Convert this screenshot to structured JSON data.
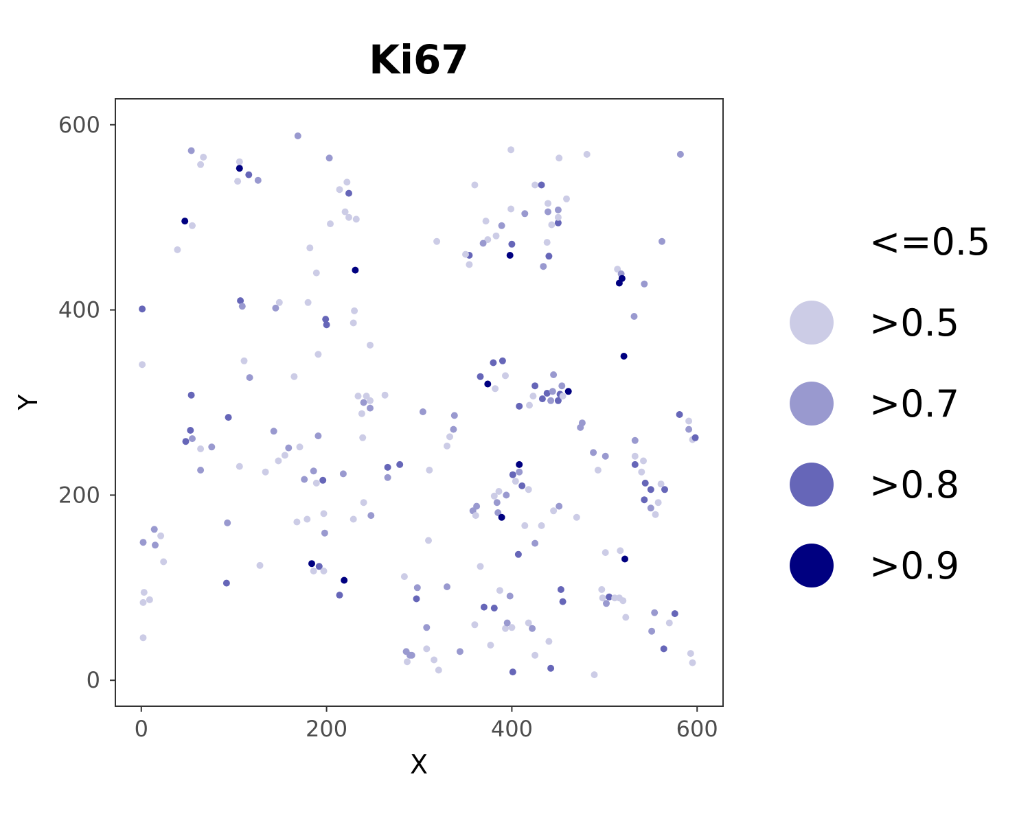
{
  "chart_data": {
    "type": "scatter",
    "title": "Ki67",
    "xlabel": "X",
    "ylabel": "Y",
    "xlim": [
      -28,
      628
    ],
    "ylim": [
      -28,
      628
    ],
    "x_ticks": [
      0,
      200,
      400,
      600
    ],
    "y_ticks": [
      0,
      200,
      400,
      600
    ],
    "x_tick_labels": [
      "0",
      "200",
      "400",
      "600"
    ],
    "y_tick_labels": [
      "0",
      "200",
      "400",
      "600"
    ],
    "grid": false,
    "legend_position": "right",
    "legend": [
      {
        "label": "<=0.5",
        "level": 0,
        "color": "#ffffff",
        "show_key": false
      },
      {
        "label": ">0.5",
        "level": 1,
        "color": "#cccce6",
        "show_key": true
      },
      {
        "label": ">0.7",
        "level": 2,
        "color": "#9999cf",
        "show_key": true
      },
      {
        "label": ">0.8",
        "level": 3,
        "color": "#6666b8",
        "show_key": true
      },
      {
        "label": ">0.9",
        "level": 4,
        "color": "#000080",
        "show_key": true
      }
    ],
    "points": [
      [
        54,
        572,
        2
      ],
      [
        64,
        557,
        1
      ],
      [
        67,
        565,
        1
      ],
      [
        106,
        560,
        1
      ],
      [
        106,
        553,
        4
      ],
      [
        116,
        546,
        3
      ],
      [
        126,
        540,
        2
      ],
      [
        104,
        539,
        1
      ],
      [
        169,
        588,
        2
      ],
      [
        203,
        564,
        2
      ],
      [
        214,
        530,
        1
      ],
      [
        222,
        538,
        1
      ],
      [
        224,
        526,
        3
      ],
      [
        220,
        506,
        1
      ],
      [
        224,
        500,
        1
      ],
      [
        232,
        498,
        1
      ],
      [
        204,
        493,
        1
      ],
      [
        47,
        496,
        4
      ],
      [
        55,
        491,
        1
      ],
      [
        39,
        465,
        1
      ],
      [
        182,
        467,
        1
      ],
      [
        189,
        440,
        1
      ],
      [
        231,
        443,
        4
      ],
      [
        360,
        535,
        1
      ],
      [
        372,
        496,
        1
      ],
      [
        389,
        491,
        2
      ],
      [
        383,
        480,
        1
      ],
      [
        374,
        476,
        1
      ],
      [
        369,
        472,
        2
      ],
      [
        399,
        509,
        1
      ],
      [
        399,
        573,
        1
      ],
      [
        414,
        504,
        2
      ],
      [
        400,
        471,
        3
      ],
      [
        398,
        459,
        4
      ],
      [
        354,
        459,
        3
      ],
      [
        350,
        460,
        1
      ],
      [
        354,
        449,
        1
      ],
      [
        319,
        474,
        1
      ],
      [
        425,
        535,
        1
      ],
      [
        432,
        535,
        3
      ],
      [
        439,
        515,
        1
      ],
      [
        439,
        506,
        2
      ],
      [
        450,
        508,
        2
      ],
      [
        459,
        520,
        1
      ],
      [
        443,
        492,
        1
      ],
      [
        450,
        494,
        3
      ],
      [
        450,
        500,
        1
      ],
      [
        440,
        458,
        3
      ],
      [
        438,
        473,
        1
      ],
      [
        434,
        447,
        2
      ],
      [
        451,
        564,
        1
      ],
      [
        481,
        568,
        1
      ],
      [
        562,
        474,
        2
      ],
      [
        582,
        568,
        2
      ],
      [
        514,
        444,
        1
      ],
      [
        518,
        439,
        2
      ],
      [
        519,
        434,
        4
      ],
      [
        516,
        429,
        4
      ],
      [
        543,
        428,
        2
      ],
      [
        532,
        393,
        2
      ],
      [
        521,
        350,
        4
      ],
      [
        1,
        401,
        3
      ],
      [
        1,
        341,
        1
      ],
      [
        107,
        410,
        3
      ],
      [
        109,
        404,
        2
      ],
      [
        111,
        345,
        1
      ],
      [
        117,
        327,
        2
      ],
      [
        145,
        402,
        2
      ],
      [
        149,
        408,
        1
      ],
      [
        180,
        408,
        1
      ],
      [
        165,
        328,
        1
      ],
      [
        191,
        352,
        1
      ],
      [
        199,
        390,
        3
      ],
      [
        200,
        384,
        3
      ],
      [
        229,
        386,
        1
      ],
      [
        230,
        399,
        1
      ],
      [
        247,
        362,
        1
      ],
      [
        234,
        307,
        1
      ],
      [
        243,
        307,
        1
      ],
      [
        240,
        300,
        2
      ],
      [
        247,
        294,
        2
      ],
      [
        238,
        288,
        1
      ],
      [
        247,
        302,
        1
      ],
      [
        263,
        308,
        1
      ],
      [
        239,
        262,
        1
      ],
      [
        54,
        308,
        3
      ],
      [
        53,
        270,
        3
      ],
      [
        48,
        258,
        3
      ],
      [
        55,
        261,
        2
      ],
      [
        64,
        250,
        1
      ],
      [
        64,
        227,
        2
      ],
      [
        76,
        252,
        2
      ],
      [
        94,
        284,
        3
      ],
      [
        143,
        269,
        2
      ],
      [
        159,
        251,
        2
      ],
      [
        171,
        252,
        1
      ],
      [
        148,
        237,
        1
      ],
      [
        155,
        243,
        1
      ],
      [
        134,
        225,
        1
      ],
      [
        106,
        231,
        1
      ],
      [
        176,
        217,
        2
      ],
      [
        186,
        226,
        2
      ],
      [
        189,
        213,
        1
      ],
      [
        196,
        216,
        3
      ],
      [
        218,
        223,
        2
      ],
      [
        191,
        264,
        2
      ],
      [
        266,
        230,
        3
      ],
      [
        266,
        219,
        2
      ],
      [
        279,
        233,
        3
      ],
      [
        304,
        290,
        2
      ],
      [
        311,
        227,
        1
      ],
      [
        338,
        286,
        2
      ],
      [
        337,
        271,
        2
      ],
      [
        333,
        263,
        1
      ],
      [
        330,
        253,
        1
      ],
      [
        366,
        328,
        3
      ],
      [
        374,
        320,
        4
      ],
      [
        380,
        343,
        3
      ],
      [
        382,
        315,
        1
      ],
      [
        390,
        345,
        3
      ],
      [
        393,
        329,
        1
      ],
      [
        408,
        296,
        3
      ],
      [
        419,
        297,
        1
      ],
      [
        423,
        307,
        1
      ],
      [
        425,
        318,
        3
      ],
      [
        433,
        304,
        3
      ],
      [
        438,
        310,
        3
      ],
      [
        442,
        302,
        2
      ],
      [
        444,
        312,
        2
      ],
      [
        445,
        330,
        2
      ],
      [
        450,
        302,
        3
      ],
      [
        452,
        309,
        3
      ],
      [
        454,
        318,
        2
      ],
      [
        455,
        307,
        1
      ],
      [
        461,
        312,
        4
      ],
      [
        474,
        273,
        2
      ],
      [
        476,
        278,
        2
      ],
      [
        488,
        246,
        2
      ],
      [
        493,
        227,
        1
      ],
      [
        501,
        242,
        2
      ],
      [
        533,
        259,
        2
      ],
      [
        533,
        242,
        1
      ],
      [
        533,
        233,
        3
      ],
      [
        540,
        225,
        1
      ],
      [
        542,
        237,
        1
      ],
      [
        544,
        213,
        3
      ],
      [
        550,
        206,
        3
      ],
      [
        558,
        192,
        1
      ],
      [
        561,
        212,
        1
      ],
      [
        565,
        206,
        3
      ],
      [
        555,
        179,
        1
      ],
      [
        550,
        186,
        2
      ],
      [
        543,
        195,
        3
      ],
      [
        581,
        287,
        3
      ],
      [
        591,
        280,
        1
      ],
      [
        591,
        271,
        2
      ],
      [
        595,
        260,
        1
      ],
      [
        598,
        262,
        3
      ],
      [
        2,
        149,
        2
      ],
      [
        14,
        163,
        2
      ],
      [
        15,
        146,
        2
      ],
      [
        21,
        156,
        1
      ],
      [
        24,
        128,
        1
      ],
      [
        3,
        95,
        1
      ],
      [
        2,
        84,
        1
      ],
      [
        9,
        87,
        1
      ],
      [
        2,
        46,
        1
      ],
      [
        93,
        170,
        2
      ],
      [
        92,
        105,
        3
      ],
      [
        128,
        124,
        1
      ],
      [
        168,
        171,
        1
      ],
      [
        179,
        174,
        1
      ],
      [
        197,
        180,
        1
      ],
      [
        198,
        159,
        2
      ],
      [
        184,
        126,
        4
      ],
      [
        192,
        123,
        3
      ],
      [
        186,
        118,
        1
      ],
      [
        197,
        118,
        1
      ],
      [
        219,
        108,
        4
      ],
      [
        214,
        92,
        3
      ],
      [
        229,
        174,
        1
      ],
      [
        248,
        178,
        2
      ],
      [
        240,
        192,
        1
      ],
      [
        362,
        188,
        2
      ],
      [
        358,
        183,
        2
      ],
      [
        361,
        178,
        1
      ],
      [
        381,
        199,
        1
      ],
      [
        384,
        192,
        2
      ],
      [
        386,
        204,
        1
      ],
      [
        394,
        200,
        2
      ],
      [
        385,
        181,
        2
      ],
      [
        389,
        176,
        4
      ],
      [
        401,
        222,
        3
      ],
      [
        404,
        215,
        1
      ],
      [
        408,
        233,
        4
      ],
      [
        408,
        225,
        2
      ],
      [
        411,
        210,
        3
      ],
      [
        418,
        206,
        1
      ],
      [
        414,
        167,
        1
      ],
      [
        407,
        136,
        3
      ],
      [
        425,
        148,
        2
      ],
      [
        432,
        167,
        1
      ],
      [
        445,
        183,
        1
      ],
      [
        451,
        188,
        2
      ],
      [
        470,
        176,
        1
      ],
      [
        501,
        138,
        1
      ],
      [
        517,
        140,
        1
      ],
      [
        522,
        131,
        4
      ],
      [
        310,
        151,
        1
      ],
      [
        284,
        112,
        1
      ],
      [
        298,
        100,
        2
      ],
      [
        297,
        88,
        3
      ],
      [
        308,
        57,
        2
      ],
      [
        286,
        31,
        2
      ],
      [
        290,
        27,
        2
      ],
      [
        287,
        20,
        1
      ],
      [
        292,
        27,
        2
      ],
      [
        308,
        34,
        1
      ],
      [
        316,
        22,
        1
      ],
      [
        321,
        11,
        1
      ],
      [
        330,
        101,
        2
      ],
      [
        344,
        31,
        2
      ],
      [
        360,
        60,
        1
      ],
      [
        366,
        123,
        1
      ],
      [
        370,
        79,
        3
      ],
      [
        377,
        38,
        1
      ],
      [
        381,
        78,
        3
      ],
      [
        387,
        97,
        1
      ],
      [
        393,
        56,
        1
      ],
      [
        395,
        62,
        2
      ],
      [
        398,
        91,
        2
      ],
      [
        400,
        57,
        1
      ],
      [
        401,
        9,
        3
      ],
      [
        418,
        62,
        1
      ],
      [
        422,
        56,
        2
      ],
      [
        425,
        27,
        1
      ],
      [
        440,
        42,
        1
      ],
      [
        442,
        13,
        3
      ],
      [
        453,
        98,
        3
      ],
      [
        455,
        85,
        3
      ],
      [
        489,
        6,
        1
      ],
      [
        497,
        98,
        1
      ],
      [
        498,
        89,
        1
      ],
      [
        502,
        83,
        2
      ],
      [
        505,
        90,
        3
      ],
      [
        511,
        89,
        1
      ],
      [
        516,
        89,
        1
      ],
      [
        520,
        86,
        1
      ],
      [
        523,
        68,
        1
      ],
      [
        554,
        73,
        2
      ],
      [
        551,
        53,
        2
      ],
      [
        564,
        34,
        3
      ],
      [
        570,
        62,
        1
      ],
      [
        576,
        72,
        3
      ],
      [
        593,
        29,
        1
      ],
      [
        595,
        19,
        1
      ]
    ]
  }
}
